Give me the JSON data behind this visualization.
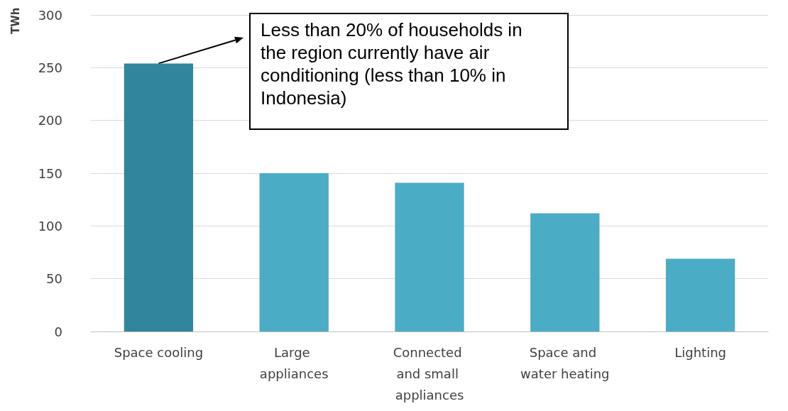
{
  "chart_data": {
    "type": "bar",
    "ylabel": "TWh",
    "categories": [
      "Space cooling",
      "Large appliances",
      "Connected and small appliances",
      "Space and water heating",
      "Lighting"
    ],
    "values": [
      254,
      150,
      141,
      112,
      69
    ],
    "colors": [
      "#31859c",
      "#4bacc6",
      "#4bacc6",
      "#4bacc6",
      "#4bacc6"
    ],
    "ylim": [
      0,
      300
    ],
    "yticks": [
      0,
      50,
      100,
      150,
      200,
      250,
      300
    ],
    "grid": "y",
    "annotations": [
      "Less than 20% of households in the region currently have air conditioning  (less than 10% in Indonesia)"
    ]
  }
}
